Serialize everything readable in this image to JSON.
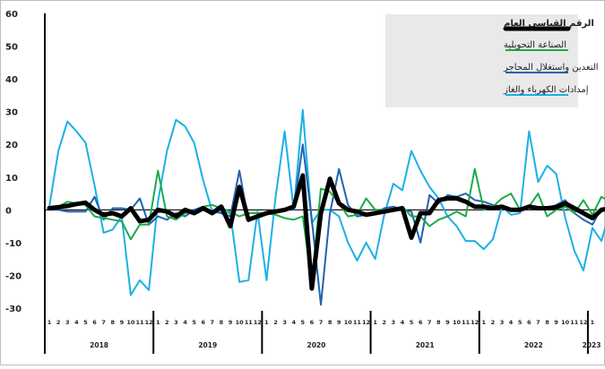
{
  "chart_data": {
    "type": "line",
    "title": "",
    "xlabel": "",
    "ylabel": "",
    "ylim": [
      -30,
      60
    ],
    "yticks": [
      60,
      50,
      40,
      30,
      20,
      10,
      0,
      -10,
      -20,
      -30
    ],
    "grid": false,
    "legend_position": "top-right",
    "years": [
      {
        "label": "2018",
        "months": 12
      },
      {
        "label": "2019",
        "months": 12
      },
      {
        "label": "2020",
        "months": 12
      },
      {
        "label": "2021",
        "months": 12
      },
      {
        "label": "2022",
        "months": 12
      },
      {
        "label": "2023",
        "months": 1
      }
    ],
    "month_labels": [
      "1",
      "2",
      "3",
      "4",
      "5",
      "6",
      "7",
      "8",
      "9",
      "10",
      "11",
      "12"
    ],
    "series": [
      {
        "name": "الرقم القياسي العام",
        "color": "#000000",
        "values": [
          0.5,
          0.8,
          1.2,
          1.8,
          2.2,
          0,
          -1.5,
          -1,
          -2,
          0.5,
          -3.5,
          -3,
          0,
          -0.5,
          -2,
          0,
          -1,
          0.5,
          -1,
          1,
          -5,
          7,
          -3,
          -2,
          -1,
          -0.5,
          0,
          1,
          10.5,
          -24,
          -1,
          9.5,
          2,
          0,
          -0.5,
          -1.5,
          -1,
          -0.5,
          0,
          0.5,
          -8.5,
          -1,
          -1,
          3,
          3.5,
          3.5,
          2.5,
          1,
          1,
          0.5,
          1,
          0,
          0,
          1,
          0.5,
          0.5,
          0.8,
          2,
          0.5,
          -1,
          -2.5,
          0,
          0.5
        ]
      },
      {
        "name": "الصناعة التحويلية",
        "color": "#1cab4a",
        "values": [
          0,
          1,
          2.5,
          2,
          1.5,
          -2,
          -2.5,
          -3,
          -3.5,
          -9,
          -4.5,
          -4.5,
          12,
          -2,
          -3,
          -1,
          -0.5,
          1,
          1.5,
          0.5,
          -0.5,
          -2,
          -1,
          -1,
          -1,
          -1.5,
          -2.5,
          -3,
          -2,
          -22,
          6.5,
          5.5,
          2,
          -2,
          -1.5,
          3.5,
          0,
          0,
          0,
          1,
          -2,
          -2,
          -5,
          -3,
          -2,
          -0.5,
          -2,
          12.5,
          0,
          1,
          3.5,
          5,
          0,
          1,
          5,
          -2,
          0,
          1,
          -1,
          3,
          -1.5,
          4,
          2.5
        ]
      },
      {
        "name": "التعدين واستغلال المحاجر",
        "color": "#1f64b2",
        "values": [
          0,
          0,
          -0.5,
          -0.5,
          -0.5,
          4,
          -3,
          0.5,
          0.5,
          0,
          3.5,
          -4.5,
          -2,
          -3,
          -1,
          -2,
          0,
          1,
          -0.5,
          -1,
          -2,
          12,
          -3.5,
          -2,
          -1,
          -0.5,
          0,
          0,
          20,
          -3,
          -29,
          -1,
          12.5,
          1.5,
          -2,
          -1.5,
          -1,
          0.5,
          1,
          0,
          -0.5,
          -10,
          4.5,
          2,
          4.5,
          4,
          5,
          3,
          2.5,
          1.5,
          1,
          0,
          0.5,
          1,
          0.5,
          0.5,
          1.5,
          3,
          -1,
          -3,
          -4.5,
          0.5,
          0
        ]
      },
      {
        "name": "إمدادات الكهرباء والغاز",
        "color": "#1cb0e6",
        "values": [
          1,
          18,
          27,
          24,
          20.5,
          7.5,
          -7,
          -6,
          -2,
          -26,
          -21.5,
          -24.5,
          2.5,
          18,
          27.5,
          25.5,
          20.5,
          9,
          -0.5,
          -0.5,
          -1,
          -22,
          -21.5,
          -0.5,
          -21.5,
          4,
          24,
          0,
          30.5,
          -4,
          0,
          0,
          -2,
          -10,
          -15.5,
          -10,
          -15,
          -1.5,
          8,
          6,
          18,
          12,
          7,
          3.5,
          -2,
          -5,
          -9.5,
          -9.5,
          -12,
          -9,
          1,
          -1.5,
          -1,
          24,
          8.5,
          13.5,
          11,
          -2.5,
          -12.5,
          -18.5,
          -5.5,
          -9.5,
          0
        ]
      }
    ]
  }
}
